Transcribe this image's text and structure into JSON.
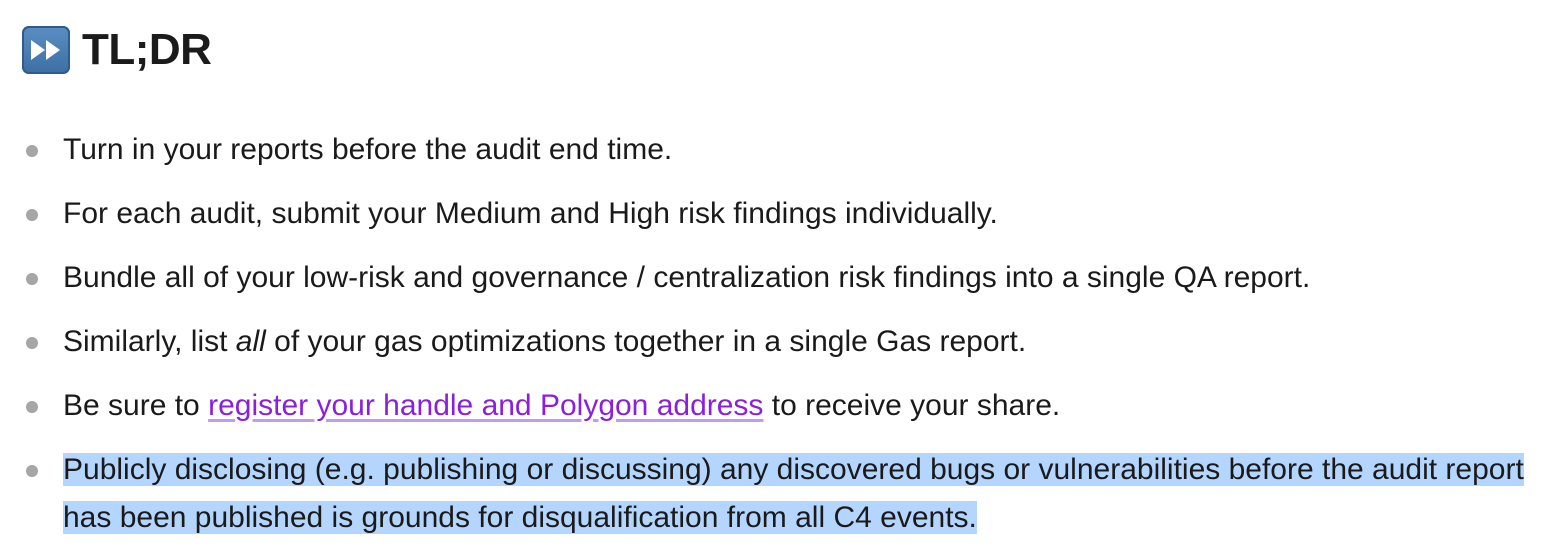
{
  "heading": {
    "icon": "fast-forward-icon",
    "text": "TL;DR"
  },
  "colors": {
    "link": "#8a1fe0",
    "selection_highlight": "#b4d5fe",
    "bullet": "#a6a6a6",
    "icon_background": "#4a7fb5"
  },
  "items": [
    {
      "text": "Turn in your reports before the audit end time."
    },
    {
      "text": "For each audit, submit your Medium and High risk findings individually."
    },
    {
      "text": "Bundle all of your low-risk and governance / centralization risk findings into a single QA report."
    },
    {
      "before": "Similarly, list ",
      "emphasis": "all",
      "after": " of your gas optimizations together in a single Gas report."
    },
    {
      "before": "Be sure to ",
      "link": "register your handle and Polygon address",
      "after": " to receive your share."
    },
    {
      "text": "Publicly disclosing (e.g. publishing or discussing) any discovered bugs or vulnerabilities before the audit report has been published is grounds for disqualification from all C4 events.",
      "selected": true
    }
  ]
}
